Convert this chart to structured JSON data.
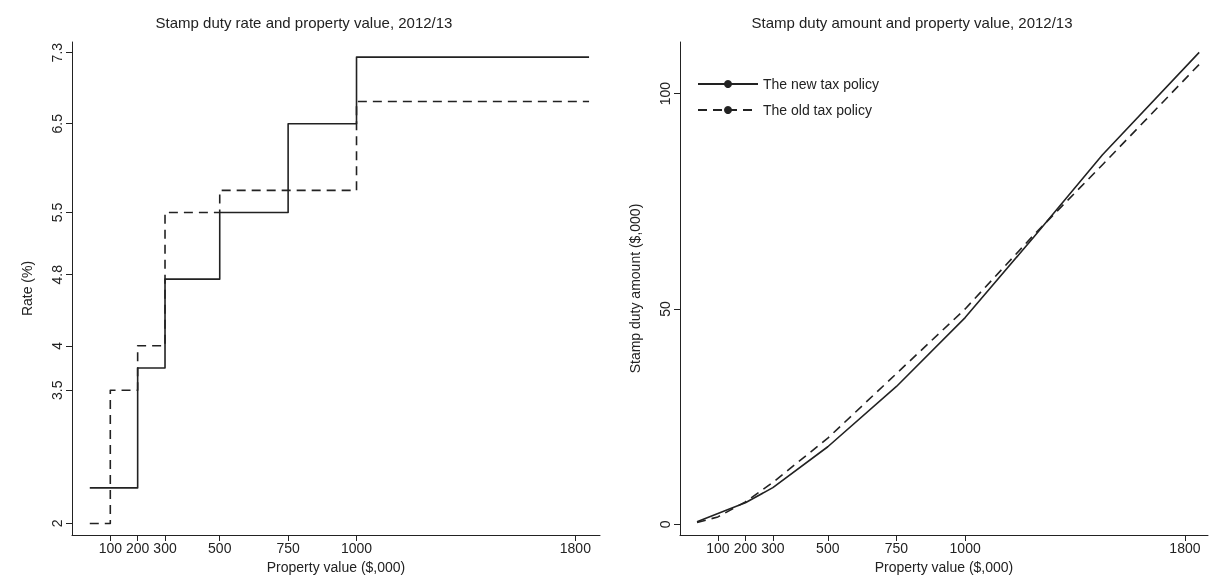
{
  "chart_data": [
    {
      "type": "step",
      "title": "Stamp duty rate and property value, 2012/13",
      "xlabel": "Property value ($,000)",
      "ylabel": "Rate (%)",
      "xlim": [
        -40,
        1890
      ],
      "xticks": [
        100,
        200,
        300,
        500,
        750,
        1000,
        1800
      ],
      "ylim": [
        1.87,
        7.42
      ],
      "yticks": [
        2,
        3.5,
        4,
        4.8,
        5.5,
        6.5,
        7.3
      ],
      "series": [
        {
          "color": "#222222",
          "line_style": "solid",
          "x": [
            25,
            200,
            300,
            500,
            750,
            1000,
            1850
          ],
          "values": [
            2.4,
            3.75,
            4.75,
            5.5,
            6.5,
            7.25,
            7.25
          ]
        },
        {
          "color": "#222222",
          "line_style": "dashed",
          "x": [
            25,
            100,
            200,
            300,
            500,
            1000,
            1850
          ],
          "values": [
            2,
            3.5,
            4,
            5.5,
            5.75,
            6.75,
            6.75
          ]
        }
      ],
      "grid": false,
      "legend": false,
      "marker": "none"
    },
    {
      "type": "line",
      "title": "Stamp duty amount and property value, 2012/13",
      "xlabel": "Property value ($,000)",
      "ylabel": "Stamp duty amount ($,000)",
      "xlim": [
        -38,
        1884
      ],
      "xticks": [
        100,
        200,
        300,
        500,
        750,
        1000,
        1800
      ],
      "ylim": [
        -2.5,
        112
      ],
      "yticks": [
        0,
        50,
        100
      ],
      "series": [
        {
          "name": "The new tax policy",
          "color": "#222222",
          "line_style": "solid",
          "x": [
            24,
            200,
            300,
            500,
            750,
            1000,
            1250,
            1500,
            1852
          ],
          "values": [
            0.6,
            5,
            8.5,
            18,
            32,
            48,
            66.7,
            85.8,
            109.6
          ]
        },
        {
          "name": "The old tax policy",
          "color": "#222222",
          "line_style": "dashed",
          "x": [
            24,
            100,
            200,
            300,
            500,
            750,
            1000,
            1250,
            1500,
            1852
          ],
          "values": [
            0.4,
            1.7,
            5.2,
            9.7,
            20,
            35,
            50,
            67.2,
            83.5,
            106.8
          ]
        }
      ],
      "grid": false,
      "legend": "top left",
      "marker": "none"
    }
  ]
}
